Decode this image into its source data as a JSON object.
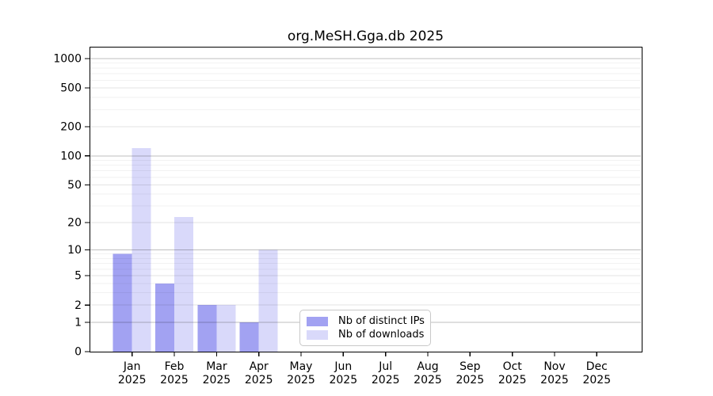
{
  "chart_data": {
    "type": "bar",
    "title": "org.MeSH.Gga.db 2025",
    "categories": [
      "Jan",
      "Feb",
      "Mar",
      "Apr",
      "May",
      "Jun",
      "Jul",
      "Aug",
      "Sep",
      "Oct",
      "Nov",
      "Dec"
    ],
    "category_year": "2025",
    "series": [
      {
        "name": "Nb of distinct IPs",
        "color": "#a2a2f2",
        "values": [
          9,
          4,
          2,
          1,
          0,
          0,
          0,
          0,
          0,
          0,
          0,
          0
        ]
      },
      {
        "name": "Nb of downloads",
        "color": "#d9d9fa",
        "values": [
          120,
          23,
          2,
          10,
          0,
          0,
          0,
          0,
          0,
          0,
          0,
          0
        ]
      }
    ],
    "xlabel": "",
    "ylabel": "",
    "y_scale": "log10(1+x)",
    "y_ticks": [
      0,
      1,
      2,
      5,
      10,
      20,
      50,
      100,
      200,
      500,
      1000
    ],
    "y_tick_labels": [
      "0",
      "1",
      "2",
      "5",
      "10",
      "20",
      "50",
      "100",
      "200",
      "500",
      "1000"
    ],
    "ylim": [
      0,
      1325
    ],
    "grid": "horizontal",
    "legend_position": "bottom-center-inside"
  },
  "colors": {
    "background": "#ffffff",
    "spine": "#000000",
    "tick": "#000000",
    "tick_label": "#000000",
    "grid_major": "rgba(0,0,0,0.25)",
    "grid_mid": "rgba(0,0,0,0.11)",
    "grid_minor": "rgba(0,0,0,0.05)",
    "legend_border": "#c9c9c9"
  }
}
